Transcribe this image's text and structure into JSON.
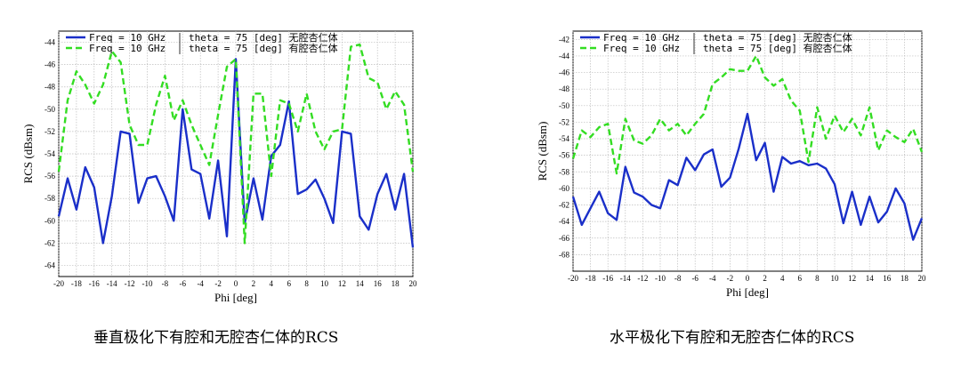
{
  "chart_data": [
    {
      "type": "line",
      "xlabel": "Phi [deg]",
      "ylabel": "RCS (dBsm)",
      "xlim": [
        -20,
        20
      ],
      "ylim": [
        -65,
        -43
      ],
      "xticks": [
        -20,
        -18,
        -16,
        -14,
        -12,
        -10,
        -8,
        -6,
        -4,
        -2,
        0,
        2,
        4,
        6,
        8,
        10,
        12,
        14,
        16,
        18,
        20
      ],
      "yticks": [
        -64,
        -62,
        -60,
        -58,
        -56,
        -54,
        -52,
        -50,
        -48,
        -46,
        -44
      ],
      "grid": true,
      "legend_position": "top-left",
      "x": [
        -20,
        -19,
        -18,
        -17,
        -16,
        -15,
        -14,
        -13,
        -12,
        -11,
        -10,
        -9,
        -8,
        -7,
        -6,
        -5,
        -4,
        -3,
        -2,
        -1,
        0,
        1,
        2,
        3,
        4,
        5,
        6,
        7,
        8,
        9,
        10,
        11,
        12,
        13,
        14,
        15,
        16,
        17,
        18,
        19,
        20
      ],
      "series": [
        {
          "name": "Freq = 10 GHz | theta = 75 [deg] 无腔杏仁体",
          "color": "#1a2fc9",
          "dash": "solid",
          "values": [
            -59.6,
            -56.2,
            -59.0,
            -55.2,
            -57.0,
            -62.0,
            -57.8,
            -52.0,
            -52.2,
            -58.4,
            -56.2,
            -56.0,
            -57.8,
            -60.0,
            -50.0,
            -55.4,
            -55.8,
            -59.8,
            -54.6,
            -61.4,
            -45.5,
            -60.2,
            -56.2,
            -59.9,
            -54.2,
            -53.2,
            -49.3,
            -57.6,
            -57.2,
            -56.3,
            -58.0,
            -60.2,
            -52.0,
            -52.2,
            -59.6,
            -60.8,
            -57.6,
            -55.8,
            -59.0,
            -55.8,
            -62.4
          ]
        },
        {
          "name": "Freq = 10 GHz | theta = 75 [deg] 有腔杏仁体",
          "color": "#33dd22",
          "dash": "dashed",
          "values": [
            -55.6,
            -49.2,
            -46.6,
            -47.8,
            -49.5,
            -47.8,
            -44.8,
            -45.8,
            -51.4,
            -53.2,
            -53.2,
            -49.6,
            -47.0,
            -51.0,
            -49.2,
            -51.4,
            -53.2,
            -55.0,
            -50.5,
            -46.2,
            -45.5,
            -62.0,
            -48.6,
            -48.6,
            -56.0,
            -49.2,
            -49.5,
            -52.0,
            -48.6,
            -52.0,
            -53.6,
            -52.0,
            -51.8,
            -44.4,
            -44.2,
            -47.2,
            -47.6,
            -50.0,
            -48.4,
            -49.6,
            -55.6
          ]
        }
      ]
    },
    {
      "type": "line",
      "xlabel": "Phi [deg]",
      "ylabel": "RCS (dBsm)",
      "xlim": [
        -20,
        20
      ],
      "ylim": [
        -70,
        -41
      ],
      "xticks": [
        -20,
        -18,
        -16,
        -14,
        -12,
        -10,
        -8,
        -6,
        -4,
        -2,
        0,
        2,
        4,
        6,
        8,
        10,
        12,
        14,
        16,
        18,
        20
      ],
      "yticks": [
        -68,
        -66,
        -64,
        -62,
        -60,
        -58,
        -56,
        -54,
        -52,
        -50,
        -48,
        -46,
        -44,
        -42
      ],
      "grid": true,
      "legend_position": "top-left",
      "x": [
        -20,
        -19,
        -18,
        -17,
        -16,
        -15,
        -14,
        -13,
        -12,
        -11,
        -10,
        -9,
        -8,
        -7,
        -6,
        -5,
        -4,
        -3,
        -2,
        -1,
        0,
        1,
        2,
        3,
        4,
        5,
        6,
        7,
        8,
        9,
        10,
        11,
        12,
        13,
        14,
        15,
        16,
        17,
        18,
        19,
        20
      ],
      "series": [
        {
          "name": "Freq = 10 GHz | theta = 75 [deg] 无腔杏仁体",
          "color": "#1a2fc9",
          "dash": "solid",
          "values": [
            -61.0,
            -64.4,
            -62.4,
            -60.4,
            -63.0,
            -63.8,
            -57.4,
            -60.5,
            -61.0,
            -62.0,
            -62.4,
            -59.0,
            -59.6,
            -56.3,
            -57.8,
            -55.9,
            -55.3,
            -59.8,
            -58.7,
            -55.2,
            -51.0,
            -56.6,
            -54.5,
            -60.4,
            -56.2,
            -57.0,
            -56.7,
            -57.2,
            -57.0,
            -57.6,
            -59.5,
            -64.2,
            -60.4,
            -64.4,
            -61.0,
            -64.1,
            -62.8,
            -60.0,
            -61.8,
            -66.2,
            -63.6
          ]
        },
        {
          "name": "Freq = 10 GHz | theta = 75 [deg] 有腔杏仁体",
          "color": "#33dd22",
          "dash": "dashed",
          "values": [
            -56.4,
            -53.0,
            -53.8,
            -52.6,
            -52.2,
            -58.2,
            -51.6,
            -54.2,
            -54.6,
            -53.6,
            -51.6,
            -53.0,
            -52.2,
            -53.6,
            -52.2,
            -51.0,
            -47.4,
            -46.6,
            -45.6,
            -45.8,
            -45.8,
            -44.0,
            -46.6,
            -47.6,
            -46.8,
            -49.4,
            -50.6,
            -56.8,
            -50.2,
            -54.0,
            -51.2,
            -53.2,
            -51.6,
            -53.6,
            -50.2,
            -55.4,
            -53.0,
            -53.8,
            -54.4,
            -52.8,
            -55.6
          ]
        }
      ]
    }
  ],
  "captions": [
    "垂直极化下有腔和无腔杏仁体的RCS",
    "水平极化下有腔和无腔杏仁体的RCS"
  ]
}
